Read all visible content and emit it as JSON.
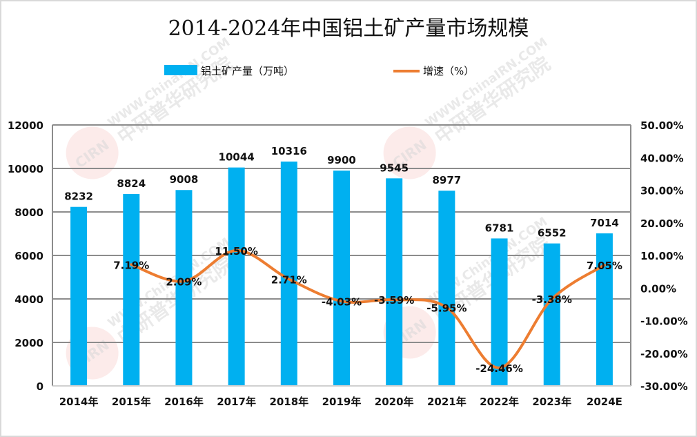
{
  "chart_data": {
    "type": "bar+line",
    "title": "2014-2024年中国铝土矿产量市场规模",
    "categories": [
      "2014年",
      "2015年",
      "2016年",
      "2017年",
      "2018年",
      "2019年",
      "2020年",
      "2021年",
      "2022年",
      "2023年",
      "2024E"
    ],
    "series": [
      {
        "name": "铝土矿产量（万吨）",
        "type": "bar",
        "axis": "left",
        "color": "#00b0f0",
        "values": [
          8232,
          8824,
          9008,
          10044,
          10316,
          9900,
          9545,
          8977,
          6781,
          6552,
          7014
        ],
        "labels": [
          "8232",
          "8824",
          "9008",
          "10044",
          "10316",
          "9900",
          "9545",
          "8977",
          "6781",
          "6552",
          "7014"
        ]
      },
      {
        "name": "增速（%）",
        "type": "line",
        "axis": "right",
        "color": "#ed7d31",
        "smooth": true,
        "values": [
          null,
          7.19,
          2.09,
          11.5,
          2.71,
          -4.03,
          -3.59,
          -5.95,
          -24.46,
          -3.38,
          7.05
        ],
        "labels": [
          null,
          "7.19%",
          "2.09%",
          "11.50%",
          "2.71%",
          "-4.03%",
          "-3.59%",
          "-5.95%",
          "-24.46%",
          "-3.38%",
          "7.05%"
        ]
      }
    ],
    "left_axis": {
      "ylim": [
        0,
        12000
      ],
      "ticks": [
        "0",
        "2000",
        "4000",
        "6000",
        "8000",
        "10000",
        "12000"
      ],
      "tick_values": [
        0,
        2000,
        4000,
        6000,
        8000,
        10000,
        12000
      ]
    },
    "right_axis": {
      "ylim": [
        -30,
        50
      ],
      "ticks": [
        "-30.00%",
        "-20.00%",
        "-10.00%",
        "0.00%",
        "10.00%",
        "20.00%",
        "30.00%",
        "40.00%",
        "50.00%"
      ],
      "tick_values": [
        -30,
        -20,
        -10,
        0,
        10,
        20,
        30,
        40,
        50
      ]
    },
    "grid": true,
    "legend_position": "top-center",
    "watermark": {
      "text_en": "WWW.ChinaIRN.COM",
      "text_cn": "中研普华研究院",
      "logo": "CIRN"
    }
  }
}
